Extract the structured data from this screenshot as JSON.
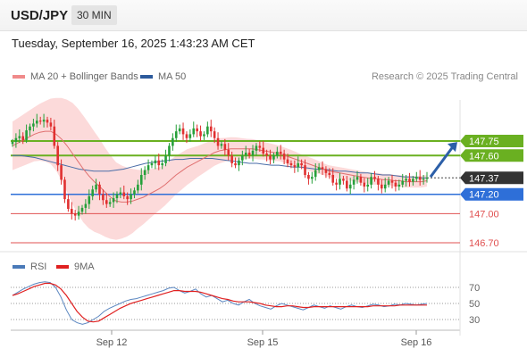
{
  "header": {
    "symbol": "USD/JPY",
    "timeframe": "30 MIN"
  },
  "subtitle": "Tuesday, September 16, 2025 1:43:23 AM CET",
  "legend": [
    {
      "label": "MA 20 + Bollinger Bands",
      "color": "#f08a8a"
    },
    {
      "label": "MA 50",
      "color": "#2c5a9c"
    }
  ],
  "rsi_legend": [
    {
      "label": "RSI",
      "color": "#4a7ab8"
    },
    {
      "label": "9MA",
      "color": "#e02020"
    }
  ],
  "credit": "Research © 2025 Trading Central",
  "colors": {
    "up": "#26a03a",
    "down": "#e03030",
    "resistance": "#6ab021",
    "pivot": "#2e6fd8",
    "support": "#e05050",
    "band": "#fbd3d3"
  },
  "chart_data": [
    {
      "type": "candlestick",
      "ylim": [
        146.6,
        148.0
      ],
      "x_ticks": [
        "Sep 12",
        "Sep 15",
        "Sep 16"
      ],
      "levels": [
        {
          "value": 147.75,
          "label": "147.75",
          "kind": "resistance"
        },
        {
          "value": 147.6,
          "label": "147.60",
          "kind": "resistance"
        },
        {
          "value": 147.2,
          "label": "147.20",
          "kind": "pivot"
        },
        {
          "value": 147.0,
          "label": "147.00",
          "kind": "support"
        },
        {
          "value": 146.7,
          "label": "146.70",
          "kind": "support"
        }
      ],
      "last_price": {
        "value": 147.37,
        "label": "147.37"
      },
      "target_arrow": {
        "from": 147.38,
        "to": 147.74
      },
      "close": [
        147.74,
        147.78,
        147.8,
        147.76,
        147.86,
        147.9,
        147.93,
        147.96,
        147.95,
        147.97,
        147.94,
        147.9,
        147.7,
        147.5,
        147.35,
        147.15,
        147.05,
        147.0,
        146.98,
        147.02,
        147.06,
        147.1,
        147.18,
        147.25,
        147.3,
        147.2,
        147.14,
        147.1,
        147.12,
        147.16,
        147.2,
        147.22,
        147.18,
        147.15,
        147.2,
        147.24,
        147.3,
        147.4,
        147.45,
        147.5,
        147.52,
        147.55,
        147.5,
        147.52,
        147.6,
        147.7,
        147.78,
        147.85,
        147.88,
        147.82,
        147.78,
        147.82,
        147.88,
        147.85,
        147.8,
        147.82,
        147.9,
        147.85,
        147.78,
        147.7,
        147.72,
        147.66,
        147.6,
        147.52,
        147.5,
        147.55,
        147.6,
        147.63,
        147.6,
        147.65,
        147.7,
        147.68,
        147.62,
        147.6,
        147.56,
        147.6,
        147.64,
        147.62,
        147.56,
        147.52,
        147.5,
        147.48,
        147.52,
        147.5,
        147.4,
        147.36,
        147.38,
        147.45,
        147.48,
        147.46,
        147.42,
        147.4,
        147.32,
        147.3,
        147.36,
        147.34,
        147.26,
        147.3,
        147.35,
        147.38,
        147.32,
        147.28,
        147.3,
        147.38,
        147.36,
        147.3,
        147.26,
        147.3,
        147.34,
        147.32,
        147.28,
        147.3,
        147.34,
        147.36,
        147.33,
        147.36,
        147.38,
        147.35,
        147.36,
        147.37
      ],
      "ma20": [
        147.7,
        147.73,
        147.76,
        147.79,
        147.82,
        147.84,
        147.85,
        147.85,
        147.82,
        147.77,
        147.7,
        147.62,
        147.54,
        147.46,
        147.39,
        147.33,
        147.28,
        147.22,
        147.17,
        147.13,
        147.12,
        147.12,
        147.13,
        147.15,
        147.17,
        147.2,
        147.23,
        147.26,
        147.3,
        147.35,
        147.4,
        147.44,
        147.48,
        147.51,
        147.54,
        147.57,
        147.6,
        147.63,
        147.65,
        147.66,
        147.67,
        147.67,
        147.67,
        147.67,
        147.67,
        147.66,
        147.65,
        147.64,
        147.63,
        147.62,
        147.6,
        147.58,
        147.56,
        147.54,
        147.52,
        147.5,
        147.48,
        147.46,
        147.44,
        147.43,
        147.42,
        147.41,
        147.4,
        147.39,
        147.38,
        147.37,
        147.36,
        147.36,
        147.35,
        147.35,
        147.34,
        147.34,
        147.33,
        147.33,
        147.33,
        147.33,
        147.34
      ],
      "ma50": [
        147.6,
        147.6,
        147.59,
        147.58,
        147.56,
        147.54,
        147.52,
        147.5,
        147.48,
        147.46,
        147.45,
        147.44,
        147.44,
        147.44,
        147.45,
        147.46,
        147.48,
        147.5,
        147.52,
        147.53,
        147.54,
        147.55,
        147.56,
        147.56,
        147.57,
        147.57,
        147.57,
        147.57,
        147.56,
        147.55,
        147.54,
        147.53,
        147.52,
        147.52,
        147.51,
        147.5,
        147.5,
        147.49,
        147.48,
        147.48,
        147.47,
        147.46,
        147.46,
        147.45,
        147.44,
        147.44,
        147.43,
        147.42,
        147.42,
        147.41,
        147.4,
        147.4,
        147.39,
        147.38,
        147.38,
        147.37,
        147.37
      ],
      "band_width": [
        0.25,
        0.26,
        0.27,
        0.28,
        0.3,
        0.33,
        0.38,
        0.45,
        0.52,
        0.55,
        0.55,
        0.52,
        0.48,
        0.44,
        0.4,
        0.37,
        0.34,
        0.3,
        0.27,
        0.24,
        0.22,
        0.21,
        0.2,
        0.19,
        0.18,
        0.16,
        0.15,
        0.14,
        0.13,
        0.12,
        0.12,
        0.11,
        0.1,
        0.1,
        0.09,
        0.09,
        0.08,
        0.08,
        0.08,
        0.07,
        0.07,
        0.07,
        0.06,
        0.06,
        0.06,
        0.06,
        0.06,
        0.06,
        0.06,
        0.06,
        0.06,
        0.06,
        0.06,
        0.06,
        0.06,
        0.06,
        0.06
      ]
    },
    {
      "type": "line",
      "ylim": [
        20,
        80
      ],
      "y_ticks": [
        70,
        50,
        30
      ],
      "rsi": [
        60,
        64,
        68,
        71,
        74,
        76,
        77,
        76,
        70,
        58,
        42,
        30,
        26,
        24,
        26,
        30,
        34,
        40,
        44,
        47,
        50,
        53,
        55,
        56,
        58,
        60,
        62,
        64,
        66,
        69,
        70,
        66,
        63,
        65,
        68,
        62,
        58,
        60,
        56,
        52,
        54,
        50,
        48,
        52,
        55,
        50,
        47,
        45,
        43,
        47,
        50,
        48,
        46,
        44,
        42,
        45,
        48,
        46,
        44,
        47,
        45,
        43,
        46,
        48,
        46,
        45,
        47,
        49,
        48,
        46,
        47,
        49,
        48,
        50,
        49,
        48,
        49,
        50
      ],
      "rsi_ma": [
        60,
        62,
        65,
        68,
        71,
        73,
        75,
        75,
        73,
        68,
        60,
        50,
        40,
        33,
        28,
        27,
        28,
        32,
        36,
        40,
        44,
        47,
        50,
        52,
        54,
        56,
        58,
        60,
        62,
        64,
        66,
        66,
        65,
        65,
        65,
        64,
        62,
        60,
        58,
        56,
        55,
        53,
        52,
        52,
        52,
        51,
        50,
        48,
        47,
        46,
        46,
        47,
        47,
        46,
        45,
        45,
        46,
        46,
        46,
        46,
        46,
        46,
        46,
        46,
        46,
        46,
        46,
        47,
        47,
        47,
        47,
        47,
        48,
        48,
        48,
        48,
        48,
        48
      ]
    }
  ]
}
